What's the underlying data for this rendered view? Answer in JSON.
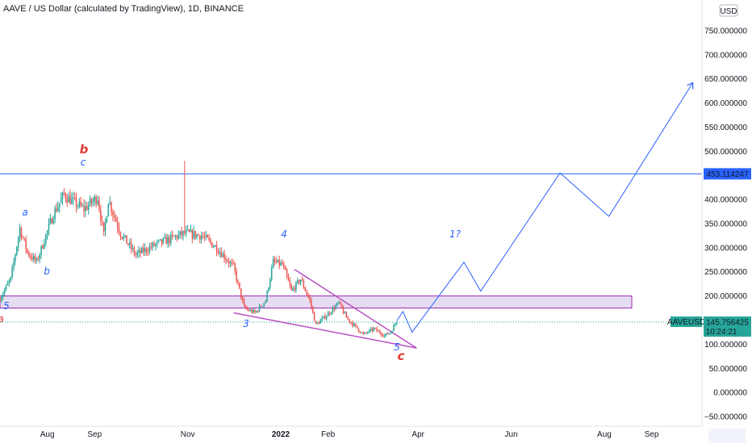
{
  "header": {
    "title": "AAVE / US Dollar (calculated by TradingView), 1D, BINANCE"
  },
  "colors": {
    "up": "#26a69a",
    "down": "#ef5350",
    "projection": "#2962ff",
    "wedge": "#b84fc2",
    "zone_fill": "#e6ddf3",
    "zone_border": "#9c27b0",
    "resistance_line": "#2962ff",
    "wave_blue": "#2962ff",
    "wave_red": "#e53935",
    "price_label_bg": "#26a69a",
    "resistance_label_bg": "#2962ff"
  },
  "price_axis": {
    "currency": "USD",
    "ticks": [
      "750.000000",
      "700.000000",
      "650.000000",
      "600.000000",
      "550.000000",
      "500.000000",
      "450.000000",
      "400.000000",
      "350.000000",
      "300.000000",
      "250.000000",
      "200.000000",
      "150.000000",
      "100.000000",
      "50.000000",
      "0.000000",
      "−50.000000"
    ],
    "tick_values": [
      750,
      700,
      650,
      600,
      550,
      500,
      450,
      400,
      350,
      300,
      250,
      200,
      150,
      100,
      50,
      0,
      -50
    ]
  },
  "time_axis": {
    "ticks": [
      "Aug",
      "Sep",
      "Nov",
      "2022",
      "Feb",
      "Apr",
      "Jun",
      "Aug",
      "Sep"
    ],
    "tick_dates": [
      "2021-08-01",
      "2021-09-01",
      "2021-11-01",
      "2022-01-01",
      "2022-02-01",
      "2022-04-01",
      "2022-06-01",
      "2022-08-01",
      "2022-09-01"
    ]
  },
  "last_price": {
    "symbol": "AAVEUSD",
    "value": "145.756425",
    "countdown": "10:24:21"
  },
  "resistance": {
    "value": 453.114247,
    "label": "453.114247"
  },
  "wave_labels": [
    {
      "text": "b",
      "color": "red",
      "big": true
    },
    {
      "text": "c",
      "color": "blue"
    },
    {
      "text": "a",
      "color": "blue"
    },
    {
      "text": "b",
      "color": "blue"
    },
    {
      "text": "5",
      "color": "blue"
    },
    {
      "text": "a",
      "color": "red"
    },
    {
      "text": "4",
      "color": "blue"
    },
    {
      "text": "3",
      "color": "blue"
    },
    {
      "text": "1?",
      "color": "blue"
    },
    {
      "text": "5",
      "color": "blue"
    },
    {
      "text": "c",
      "color": "red",
      "big": true
    }
  ],
  "chart_data": {
    "type": "candlestick",
    "title": "AAVE / US Dollar (calculated by TradingView), 1D, BINANCE",
    "xlabel": "",
    "ylabel": "",
    "ylim": [
      -70,
      790
    ],
    "xlim": [
      "2021-07-01",
      "2022-10-04"
    ],
    "grid": false,
    "price_anchors": [
      {
        "date": "2021-07-01",
        "price": 195
      },
      {
        "date": "2021-07-08",
        "price": 235
      },
      {
        "date": "2021-07-14",
        "price": 340
      },
      {
        "date": "2021-07-19",
        "price": 290
      },
      {
        "date": "2021-07-25",
        "price": 270
      },
      {
        "date": "2021-08-05",
        "price": 370
      },
      {
        "date": "2021-08-12",
        "price": 410
      },
      {
        "date": "2021-08-18",
        "price": 395
      },
      {
        "date": "2021-08-25",
        "price": 380
      },
      {
        "date": "2021-09-03",
        "price": 405
      },
      {
        "date": "2021-09-07",
        "price": 325
      },
      {
        "date": "2021-09-10",
        "price": 400
      },
      {
        "date": "2021-09-18",
        "price": 330
      },
      {
        "date": "2021-09-28",
        "price": 285
      },
      {
        "date": "2021-10-10",
        "price": 305
      },
      {
        "date": "2021-10-30",
        "price": 330
      },
      {
        "date": "2021-11-10",
        "price": 325
      },
      {
        "date": "2021-11-20",
        "price": 300
      },
      {
        "date": "2021-12-01",
        "price": 260
      },
      {
        "date": "2021-12-08",
        "price": 175
      },
      {
        "date": "2021-12-15",
        "price": 165
      },
      {
        "date": "2021-12-22",
        "price": 190
      },
      {
        "date": "2021-12-27",
        "price": 270
      },
      {
        "date": "2022-01-02",
        "price": 265
      },
      {
        "date": "2022-01-08",
        "price": 210
      },
      {
        "date": "2022-01-14",
        "price": 235
      },
      {
        "date": "2022-01-20",
        "price": 190
      },
      {
        "date": "2022-01-24",
        "price": 140
      },
      {
        "date": "2022-01-31",
        "price": 160
      },
      {
        "date": "2022-02-08",
        "price": 185
      },
      {
        "date": "2022-02-13",
        "price": 155
      },
      {
        "date": "2022-02-24",
        "price": 120
      },
      {
        "date": "2022-03-03",
        "price": 132
      },
      {
        "date": "2022-03-10",
        "price": 118
      },
      {
        "date": "2022-03-14",
        "price": 125
      },
      {
        "date": "2022-03-18",
        "price": 148
      }
    ],
    "projection_path": [
      {
        "date": "2022-03-18",
        "price": 148
      },
      {
        "date": "2022-03-22",
        "price": 168
      },
      {
        "date": "2022-03-28",
        "price": 125
      },
      {
        "date": "2022-05-01",
        "price": 270
      },
      {
        "date": "2022-05-12",
        "price": 210
      },
      {
        "date": "2022-07-03",
        "price": 455
      },
      {
        "date": "2022-08-04",
        "price": 365
      },
      {
        "date": "2022-09-28",
        "price": 642
      }
    ],
    "wedge_lines": [
      [
        {
          "date": "2021-12-01",
          "price": 165
        },
        {
          "date": "2022-03-31",
          "price": 92
        }
      ],
      [
        {
          "date": "2022-01-10",
          "price": 255
        },
        {
          "date": "2022-03-31",
          "price": 92
        }
      ]
    ],
    "support_zone": [
      175,
      200
    ],
    "resistance_level": 453.114247,
    "last_price": 145.756425
  }
}
